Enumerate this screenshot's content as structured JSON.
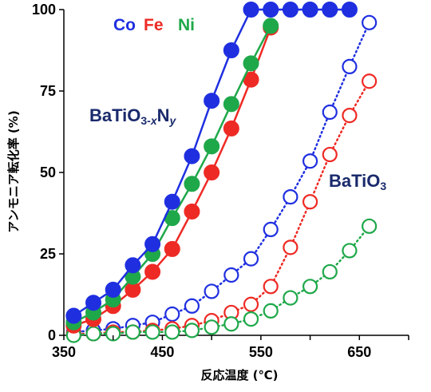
{
  "chart_data": {
    "type": "line",
    "xlabel": "反応温度 (℃)",
    "ylabel": "アンモニア転化率 (%)",
    "xlim": [
      350,
      700
    ],
    "ylim": [
      0,
      100
    ],
    "xticks": [
      350,
      450,
      550,
      650
    ],
    "yticks": [
      0,
      25,
      50,
      75,
      100
    ],
    "grid": false,
    "annotations": {
      "legend_items": [
        {
          "text": "Co",
          "color": "#1f2fe0"
        },
        {
          "text": "Fe",
          "color": "#ee2a24"
        },
        {
          "text": "Ni",
          "color": "#1fa84a"
        }
      ],
      "label_nitride": {
        "main": "BaTiO",
        "sub": "3-",
        "subvar": "x",
        "mid": "N",
        "end": "y"
      },
      "label_oxide": {
        "main": "BaTiO",
        "sub": "3"
      }
    },
    "series": [
      {
        "color": "#1f2fe0",
        "group": "nitride",
        "filled": true,
        "x": [
          360,
          380,
          400,
          420,
          440,
          460,
          480,
          500,
          520,
          540,
          560,
          580,
          600,
          620,
          640
        ],
        "y": [
          6,
          10,
          14,
          21.5,
          28,
          41,
          55,
          72,
          87.5,
          100,
          100,
          100,
          100,
          100,
          100
        ]
      },
      {
        "color": "#1fa84a",
        "group": "nitride",
        "filled": true,
        "x": [
          360,
          380,
          400,
          420,
          440,
          460,
          480,
          500,
          520,
          540,
          560
        ],
        "y": [
          4,
          7,
          11,
          18,
          25,
          36,
          46.5,
          58,
          71,
          83.5,
          95
        ]
      },
      {
        "color": "#ee2a24",
        "group": "nitride",
        "filled": true,
        "x": [
          360,
          380,
          400,
          420,
          440,
          460,
          480,
          500,
          520,
          540,
          560
        ],
        "y": [
          3,
          5,
          9,
          14,
          19.5,
          26.5,
          38,
          50,
          63.5,
          78.5,
          94.5
        ]
      },
      {
        "color": "#1f2fe0",
        "group": "oxide",
        "filled": false,
        "x": [
          360,
          380,
          400,
          420,
          440,
          460,
          480,
          500,
          520,
          540,
          560,
          580,
          600,
          620,
          640,
          660
        ],
        "y": [
          1,
          1.5,
          2,
          3,
          4,
          6.5,
          9,
          13.5,
          18.5,
          23.5,
          32.5,
          42.5,
          53.5,
          68.5,
          82.5,
          96
        ]
      },
      {
        "color": "#ee2a24",
        "group": "oxide",
        "filled": false,
        "x": [
          360,
          380,
          400,
          420,
          440,
          460,
          480,
          500,
          520,
          540,
          560,
          580,
          600,
          620,
          640,
          660
        ],
        "y": [
          0.5,
          0.5,
          1,
          1,
          1.5,
          2,
          3,
          4.5,
          7,
          9.5,
          15,
          27,
          41,
          55.5,
          67.5,
          78
        ]
      },
      {
        "color": "#1fa84a",
        "group": "oxide",
        "filled": false,
        "x": [
          360,
          380,
          400,
          420,
          440,
          460,
          480,
          500,
          520,
          540,
          560,
          580,
          600,
          620,
          640,
          660
        ],
        "y": [
          0,
          0.5,
          0.5,
          1,
          1,
          1,
          1.5,
          2.5,
          3.5,
          5,
          7.5,
          11.5,
          15,
          19.5,
          26,
          33.5
        ]
      }
    ]
  }
}
